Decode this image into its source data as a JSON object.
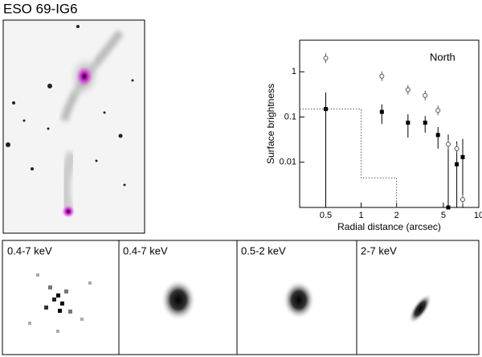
{
  "title": "ESO 69-IG6",
  "panels": [
    "0.4-7 keV",
    "0.4-7 keV",
    "0.5-2 keV",
    "2-7 keV"
  ],
  "chart_data": {
    "type": "scatter",
    "annotation": "North",
    "x_label": "Radial distance (arcsec)",
    "y_label": "Surface brightness",
    "log_x": true,
    "log_y": true,
    "xlim": [
      0.3,
      10
    ],
    "xticks": [
      0.5,
      1,
      2,
      5,
      10
    ],
    "ylim": [
      0.001,
      5
    ],
    "yticks": [
      0.01,
      0.1,
      1
    ],
    "series": [
      {
        "marker": "square",
        "color": "#000000",
        "x": [
          0.5,
          1.5,
          2.5,
          3.5,
          4.5,
          5.5,
          6.5,
          7.3
        ],
        "values": [
          0.15,
          0.13,
          0.075,
          0.075,
          0.04,
          0.001,
          0.009,
          0.013
        ],
        "errors": [
          0.2,
          0.06,
          0.04,
          0.03,
          0.02,
          0.04,
          0.02,
          0.02
        ]
      },
      {
        "marker": "circle",
        "color": "#555555",
        "x": [
          0.5,
          1.5,
          2.5,
          3.5,
          4.5,
          5.5,
          6.5,
          7.3
        ],
        "values": [
          2,
          0.8,
          0.4,
          0.3,
          0.14,
          0.025,
          0.02,
          0.0015
        ]
      },
      {
        "marker": "dotted-line",
        "color": "#555555",
        "x": [
          0.3,
          1,
          1,
          2,
          2
        ],
        "values": [
          0.15,
          0.15,
          0.0045,
          0.0045,
          0.001
        ]
      }
    ]
  }
}
